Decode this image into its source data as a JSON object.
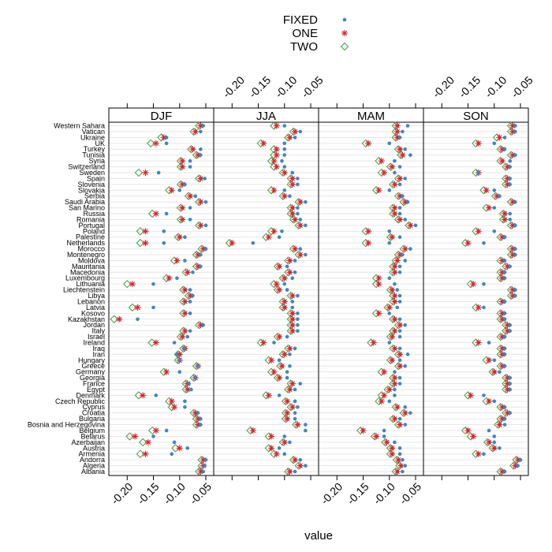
{
  "chart_data": {
    "type": "scatter",
    "title": "",
    "xlabel": "value",
    "ylabel": "",
    "xlim": [
      -0.235,
      -0.035
    ],
    "xticks": [
      -0.2,
      -0.15,
      -0.1,
      -0.05
    ],
    "xtick_labels": [
      "-0.20",
      "-0.15",
      "-0.10",
      "-0.05"
    ],
    "grid": true,
    "legend_position": "top-center",
    "legend": [
      {
        "name": "FIXED",
        "symbol": "dot",
        "color": "#3a86c8"
      },
      {
        "name": "ONE",
        "symbol": "asterisk",
        "color": "#e0202a"
      },
      {
        "name": "TWO",
        "symbol": "diamond",
        "color": "#3fa03f"
      }
    ],
    "countries": [
      "Albania",
      "Algeria",
      "Andorra",
      "Armenia",
      "Austria",
      "Azerbaijan",
      "Belarus",
      "Belgium",
      "Bosnia and Herzegovina",
      "Bulgaria",
      "Croatia",
      "Cyprus",
      "Czech Republic",
      "Denmark",
      "Egypt",
      "France",
      "Georgia",
      "Germany",
      "Greece",
      "Hungary",
      "Iran",
      "Iraq",
      "Ireland",
      "Israel",
      "Italy",
      "Jordan",
      "Kazakhstan",
      "Kosovo",
      "Latvia",
      "Lebanon",
      "Libya",
      "Liechtenstein",
      "Lithuania",
      "Luxembourg",
      "Macedonia",
      "Mauritania",
      "Moldova",
      "Montenegro",
      "Morocco",
      "Netherlands",
      "Palestine",
      "Poland",
      "Portugal",
      "Romania",
      "Russia",
      "San Marino",
      "Saudi Arabia",
      "Serbia",
      "Slovakia",
      "Slovenia",
      "Spain",
      "Sweden",
      "Switzerland",
      "Syria",
      "Tunisia",
      "Turkey",
      "UK",
      "Ukraine",
      "Vatican",
      "Western Sahara"
    ],
    "panels": [
      {
        "name": "DJF",
        "FIXED": [
          -0.055,
          -0.052,
          -0.05,
          -0.115,
          -0.085,
          -0.11,
          -0.15,
          -0.125,
          -0.06,
          -0.06,
          -0.065,
          -0.09,
          -0.09,
          -0.145,
          -0.078,
          -0.082,
          -0.07,
          -0.1,
          -0.065,
          -0.1,
          -0.105,
          -0.092,
          -0.11,
          -0.085,
          -0.08,
          -0.055,
          -0.18,
          -0.08,
          -0.15,
          -0.08,
          -0.075,
          -0.08,
          -0.15,
          -0.105,
          -0.075,
          -0.06,
          -0.09,
          -0.06,
          -0.05,
          -0.13,
          -0.09,
          -0.13,
          -0.05,
          -0.08,
          -0.125,
          -0.08,
          -0.05,
          -0.07,
          -0.1,
          -0.09,
          -0.052,
          -0.14,
          -0.08,
          -0.08,
          -0.06,
          -0.06,
          -0.125,
          -0.125,
          -0.06,
          -0.055
        ],
        "ONE": [
          -0.06,
          -0.055,
          -0.055,
          -0.165,
          -0.1,
          -0.16,
          -0.185,
          -0.145,
          -0.065,
          -0.065,
          -0.07,
          -0.11,
          -0.115,
          -0.17,
          -0.085,
          -0.085,
          -0.07,
          -0.125,
          -0.065,
          -0.1,
          -0.1,
          -0.09,
          -0.145,
          -0.095,
          -0.09,
          -0.06,
          -0.215,
          -0.09,
          -0.18,
          -0.09,
          -0.08,
          -0.09,
          -0.19,
          -0.12,
          -0.085,
          -0.065,
          -0.105,
          -0.065,
          -0.055,
          -0.165,
          -0.1,
          -0.165,
          -0.06,
          -0.095,
          -0.145,
          -0.095,
          -0.06,
          -0.08,
          -0.115,
          -0.095,
          -0.06,
          -0.165,
          -0.095,
          -0.095,
          -0.065,
          -0.075,
          -0.145,
          -0.13,
          -0.07,
          -0.06
        ],
        "TWO": [
          -0.063,
          -0.058,
          -0.058,
          -0.175,
          -0.108,
          -0.17,
          -0.195,
          -0.152,
          -0.068,
          -0.068,
          -0.073,
          -0.115,
          -0.12,
          -0.178,
          -0.088,
          -0.088,
          -0.073,
          -0.13,
          -0.068,
          -0.103,
          -0.103,
          -0.093,
          -0.153,
          -0.098,
          -0.093,
          -0.063,
          -0.225,
          -0.093,
          -0.19,
          -0.093,
          -0.083,
          -0.093,
          -0.2,
          -0.125,
          -0.088,
          -0.068,
          -0.11,
          -0.068,
          -0.058,
          -0.175,
          -0.103,
          -0.175,
          -0.063,
          -0.098,
          -0.152,
          -0.098,
          -0.063,
          -0.083,
          -0.12,
          -0.098,
          -0.063,
          -0.178,
          -0.098,
          -0.098,
          -0.068,
          -0.078,
          -0.155,
          -0.135,
          -0.073,
          -0.063
        ]
      },
      {
        "name": "JJA",
        "FIXED": [
          -0.08,
          -0.06,
          -0.07,
          -0.1,
          -0.11,
          -0.09,
          -0.1,
          -0.06,
          -0.06,
          -0.08,
          -0.08,
          -0.075,
          -0.08,
          -0.11,
          -0.08,
          -0.07,
          -0.095,
          -0.095,
          -0.09,
          -0.11,
          -0.09,
          -0.08,
          -0.12,
          -0.095,
          -0.075,
          -0.075,
          -0.075,
          -0.075,
          -0.085,
          -0.085,
          -0.075,
          -0.095,
          -0.1,
          -0.085,
          -0.08,
          -0.095,
          -0.08,
          -0.06,
          -0.07,
          -0.16,
          -0.11,
          -0.105,
          -0.06,
          -0.07,
          -0.075,
          -0.075,
          -0.06,
          -0.09,
          -0.1,
          -0.075,
          -0.075,
          -0.085,
          -0.1,
          -0.105,
          -0.1,
          -0.1,
          -0.1,
          -0.08,
          -0.07,
          -0.1
        ],
        "ONE": [
          -0.09,
          -0.07,
          -0.08,
          -0.115,
          -0.125,
          -0.1,
          -0.125,
          -0.16,
          -0.075,
          -0.095,
          -0.095,
          -0.085,
          -0.095,
          -0.13,
          -0.09,
          -0.085,
          -0.11,
          -0.12,
          -0.105,
          -0.125,
          -0.1,
          -0.09,
          -0.14,
          -0.11,
          -0.085,
          -0.085,
          -0.085,
          -0.085,
          -0.1,
          -0.1,
          -0.085,
          -0.11,
          -0.115,
          -0.1,
          -0.09,
          -0.11,
          -0.09,
          -0.07,
          -0.08,
          -0.2,
          -0.13,
          -0.12,
          -0.07,
          -0.08,
          -0.085,
          -0.085,
          -0.07,
          -0.1,
          -0.12,
          -0.085,
          -0.085,
          -0.1,
          -0.115,
          -0.12,
          -0.115,
          -0.115,
          -0.14,
          -0.09,
          -0.08,
          -0.115
        ],
        "TWO": [
          -0.093,
          -0.073,
          -0.083,
          -0.12,
          -0.13,
          -0.103,
          -0.13,
          -0.165,
          -0.078,
          -0.098,
          -0.098,
          -0.088,
          -0.098,
          -0.135,
          -0.093,
          -0.088,
          -0.113,
          -0.125,
          -0.108,
          -0.13,
          -0.103,
          -0.093,
          -0.145,
          -0.113,
          -0.088,
          -0.088,
          -0.088,
          -0.088,
          -0.103,
          -0.103,
          -0.088,
          -0.113,
          -0.12,
          -0.103,
          -0.093,
          -0.113,
          -0.093,
          -0.073,
          -0.083,
          -0.205,
          -0.135,
          -0.125,
          -0.073,
          -0.083,
          -0.088,
          -0.088,
          -0.073,
          -0.103,
          -0.125,
          -0.088,
          -0.088,
          -0.103,
          -0.12,
          -0.125,
          -0.12,
          -0.12,
          -0.145,
          -0.093,
          -0.083,
          -0.12
        ]
      },
      {
        "name": "MAM",
        "FIXED": [
          -0.075,
          -0.07,
          -0.075,
          -0.08,
          -0.08,
          -0.09,
          -0.11,
          -0.11,
          -0.07,
          -0.08,
          -0.06,
          -0.07,
          -0.1,
          -0.09,
          -0.09,
          -0.08,
          -0.08,
          -0.09,
          -0.07,
          -0.08,
          -0.065,
          -0.08,
          -0.1,
          -0.08,
          -0.08,
          -0.07,
          -0.08,
          -0.1,
          -0.085,
          -0.08,
          -0.08,
          -0.085,
          -0.09,
          -0.1,
          -0.08,
          -0.08,
          -0.07,
          -0.075,
          -0.06,
          -0.1,
          -0.08,
          -0.1,
          -0.05,
          -0.07,
          -0.08,
          -0.08,
          -0.065,
          -0.075,
          -0.1,
          -0.08,
          -0.07,
          -0.09,
          -0.08,
          -0.09,
          -0.06,
          -0.07,
          -0.1,
          -0.08,
          -0.075,
          -0.065
        ],
        "ONE": [
          -0.085,
          -0.078,
          -0.083,
          -0.095,
          -0.095,
          -0.105,
          -0.125,
          -0.15,
          -0.08,
          -0.09,
          -0.07,
          -0.085,
          -0.115,
          -0.11,
          -0.1,
          -0.09,
          -0.09,
          -0.11,
          -0.08,
          -0.095,
          -0.08,
          -0.09,
          -0.13,
          -0.095,
          -0.09,
          -0.08,
          -0.09,
          -0.12,
          -0.1,
          -0.09,
          -0.09,
          -0.095,
          -0.12,
          -0.12,
          -0.09,
          -0.09,
          -0.085,
          -0.08,
          -0.07,
          -0.14,
          -0.095,
          -0.14,
          -0.06,
          -0.08,
          -0.09,
          -0.09,
          -0.07,
          -0.08,
          -0.12,
          -0.09,
          -0.08,
          -0.11,
          -0.095,
          -0.115,
          -0.075,
          -0.08,
          -0.14,
          -0.085,
          -0.085,
          -0.085
        ],
        "TWO": [
          -0.088,
          -0.081,
          -0.086,
          -0.098,
          -0.098,
          -0.108,
          -0.128,
          -0.155,
          -0.083,
          -0.093,
          -0.073,
          -0.088,
          -0.12,
          -0.115,
          -0.103,
          -0.093,
          -0.093,
          -0.115,
          -0.083,
          -0.098,
          -0.083,
          -0.093,
          -0.135,
          -0.098,
          -0.093,
          -0.083,
          -0.093,
          -0.125,
          -0.103,
          -0.093,
          -0.093,
          -0.098,
          -0.125,
          -0.125,
          -0.093,
          -0.093,
          -0.088,
          -0.083,
          -0.073,
          -0.145,
          -0.098,
          -0.145,
          -0.063,
          -0.083,
          -0.093,
          -0.093,
          -0.073,
          -0.083,
          -0.125,
          -0.093,
          -0.083,
          -0.115,
          -0.098,
          -0.12,
          -0.078,
          -0.083,
          -0.145,
          -0.088,
          -0.088,
          -0.088
        ]
      },
      {
        "name": "SON",
        "FIXED": [
          -0.08,
          -0.055,
          -0.05,
          -0.12,
          -0.09,
          -0.1,
          -0.1,
          -0.11,
          -0.08,
          -0.08,
          -0.07,
          -0.08,
          -0.1,
          -0.12,
          -0.07,
          -0.07,
          -0.07,
          -0.09,
          -0.08,
          -0.1,
          -0.08,
          -0.08,
          -0.11,
          -0.08,
          -0.07,
          -0.07,
          -0.08,
          -0.08,
          -0.12,
          -0.08,
          -0.06,
          -0.06,
          -0.12,
          -0.08,
          -0.08,
          -0.07,
          -0.08,
          -0.06,
          -0.06,
          -0.12,
          -0.08,
          -0.1,
          -0.06,
          -0.07,
          -0.07,
          -0.1,
          -0.06,
          -0.09,
          -0.1,
          -0.07,
          -0.07,
          -0.13,
          -0.07,
          -0.07,
          -0.06,
          -0.08,
          -0.1,
          -0.08,
          -0.06,
          -0.06
        ],
        "ONE": [
          -0.085,
          -0.06,
          -0.055,
          -0.13,
          -0.1,
          -0.11,
          -0.14,
          -0.15,
          -0.09,
          -0.085,
          -0.075,
          -0.085,
          -0.11,
          -0.145,
          -0.075,
          -0.075,
          -0.075,
          -0.1,
          -0.085,
          -0.11,
          -0.085,
          -0.085,
          -0.13,
          -0.085,
          -0.075,
          -0.075,
          -0.085,
          -0.085,
          -0.13,
          -0.085,
          -0.065,
          -0.065,
          -0.14,
          -0.085,
          -0.085,
          -0.075,
          -0.085,
          -0.065,
          -0.065,
          -0.15,
          -0.085,
          -0.13,
          -0.065,
          -0.08,
          -0.08,
          -0.11,
          -0.065,
          -0.095,
          -0.115,
          -0.075,
          -0.075,
          -0.13,
          -0.075,
          -0.085,
          -0.065,
          -0.085,
          -0.13,
          -0.09,
          -0.065,
          -0.065
        ],
        "TWO": [
          -0.088,
          -0.063,
          -0.058,
          -0.135,
          -0.103,
          -0.113,
          -0.145,
          -0.155,
          -0.093,
          -0.088,
          -0.078,
          -0.088,
          -0.115,
          -0.15,
          -0.078,
          -0.078,
          -0.078,
          -0.103,
          -0.088,
          -0.115,
          -0.088,
          -0.088,
          -0.135,
          -0.088,
          -0.078,
          -0.078,
          -0.088,
          -0.088,
          -0.135,
          -0.088,
          -0.068,
          -0.068,
          -0.145,
          -0.088,
          -0.088,
          -0.078,
          -0.088,
          -0.068,
          -0.068,
          -0.155,
          -0.088,
          -0.135,
          -0.068,
          -0.083,
          -0.083,
          -0.115,
          -0.068,
          -0.098,
          -0.12,
          -0.078,
          -0.078,
          -0.135,
          -0.078,
          -0.088,
          -0.068,
          -0.088,
          -0.135,
          -0.095,
          -0.068,
          -0.068
        ]
      }
    ]
  }
}
